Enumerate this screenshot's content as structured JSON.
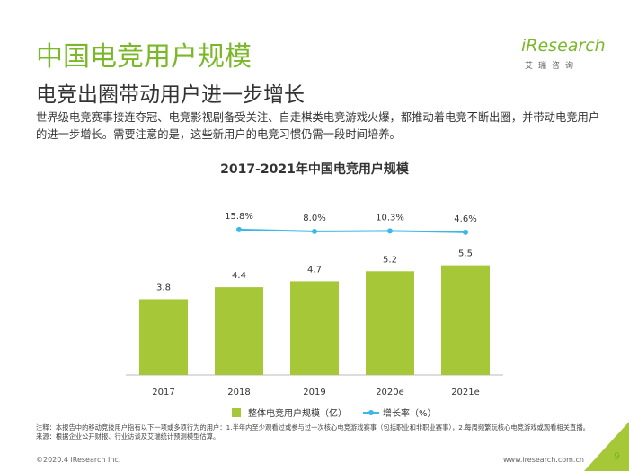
{
  "header": {
    "title": "中国电竞用户规模",
    "subtitle": "电竞出圈带动用户进一步增长",
    "description": "世界级电竞赛事接连夺冠、电竞影视剧备受关注、自走棋类电竞游戏火爆，都推动着电竞不断出圈，并带动电竞用户的进一步增长。需要注意的是，这些新用户的电竞习惯仍需一段时间培养。",
    "brand": "iResearch",
    "brand_cn": "艾瑞咨询"
  },
  "chart_data": {
    "type": "bar-line",
    "title": "2017-2021年中国电竞用户规模",
    "categories": [
      "2017",
      "2018",
      "2019",
      "2020e",
      "2021e"
    ],
    "series": [
      {
        "name": "整体电竞用户规模（亿）",
        "type": "bar",
        "color": "#a6c838",
        "values": [
          3.8,
          4.4,
          4.7,
          5.2,
          5.5
        ]
      },
      {
        "name": "增长率（%）",
        "type": "line",
        "axis": "y2",
        "color": "#3cb8e6",
        "values": [
          null,
          15.8,
          8.0,
          10.3,
          4.6
        ],
        "value_labels": [
          null,
          "15.8%",
          "8.0%",
          "10.3%",
          "4.6%"
        ]
      }
    ],
    "ylim": [
      0,
      8
    ],
    "y2lim": [
      -590,
      75
    ],
    "legend": "bottom"
  },
  "notes": [
    "注释：本报告中的移动竞技用户指有以下一项或多项行为的用户：1.半年内至少观看过或参与过一次核心电竞游戏赛事（包括职业和非职业赛事），2.每周频繁玩核心电竞游戏或观看相关直播。",
    "来源：根据企业公开财报、行业访谈及艾瑞统计预测模型估算。"
  ],
  "footer": {
    "copyright": "©2020.4 iResearch Inc.",
    "url": "www.iresearch.com.cn",
    "page": "9"
  }
}
